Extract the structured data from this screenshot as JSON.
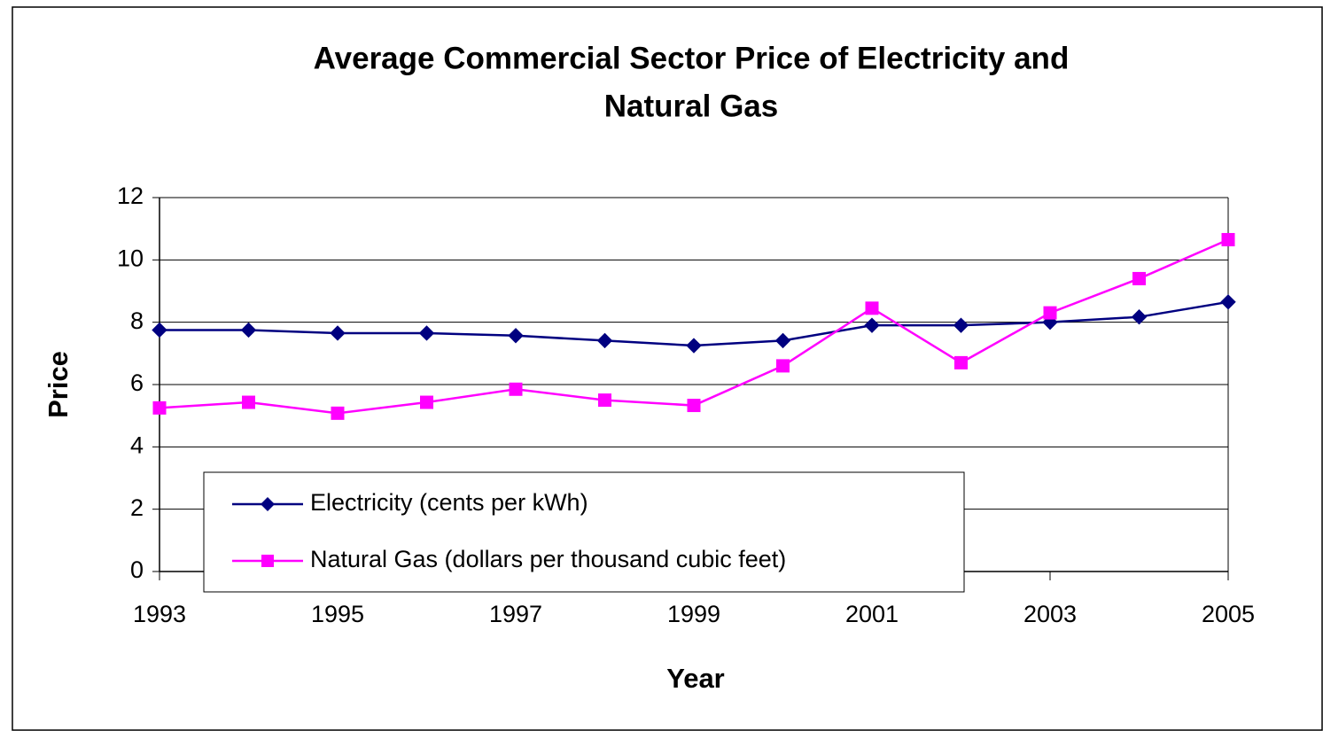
{
  "chart_data": {
    "type": "line",
    "title": [
      "Average Commercial Sector Price of Electricity and",
      "Natural Gas"
    ],
    "x_label": "Year",
    "y_label": "Price",
    "x": [
      1993,
      1994,
      1995,
      1996,
      1997,
      1998,
      1999,
      2000,
      2001,
      2002,
      2003,
      2004,
      2005
    ],
    "series": [
      {
        "name": "Electricity (cents per kWh)",
        "color": "#000080",
        "marker": "diamond",
        "values": [
          7.75,
          7.75,
          7.65,
          7.65,
          7.57,
          7.41,
          7.25,
          7.41,
          7.9,
          7.9,
          8.0,
          8.17,
          8.65
        ]
      },
      {
        "name": "Natural Gas (dollars per thousand cubic feet)",
        "color": "#ff00ff",
        "marker": "square",
        "values": [
          5.25,
          5.43,
          5.08,
          5.43,
          5.85,
          5.5,
          5.33,
          6.6,
          8.45,
          6.7,
          8.3,
          9.4,
          10.65
        ]
      }
    ],
    "xlim": [
      1993,
      2005
    ],
    "xticks": [
      1993,
      1995,
      1997,
      1999,
      2001,
      2003,
      2005
    ],
    "ylim": [
      0,
      12
    ],
    "yticks": [
      0,
      2,
      4,
      6,
      8,
      10,
      12
    ],
    "grid": true,
    "legend": "lower left"
  }
}
